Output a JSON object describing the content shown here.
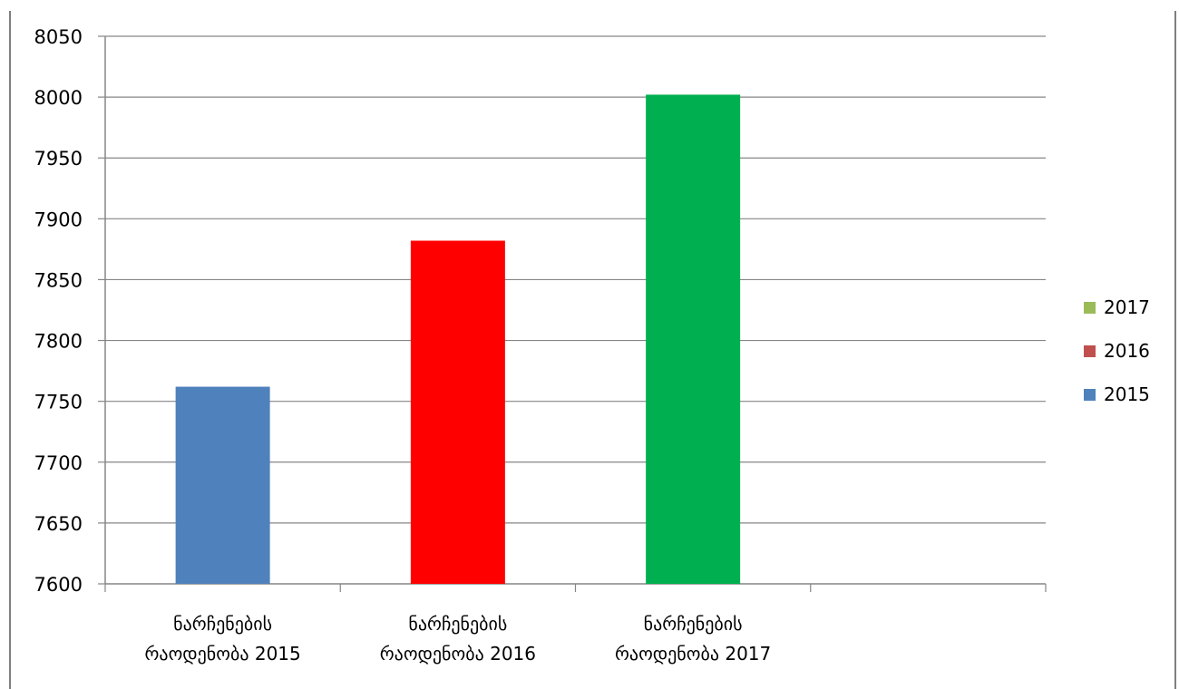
{
  "chart_data": {
    "type": "bar",
    "title": "",
    "xlabel": "",
    "ylabel": "",
    "ylim": [
      7600,
      8050
    ],
    "ytick_step": 50,
    "grid": true,
    "legend_position": "right",
    "categories": [
      [
        "ნარჩენების",
        "რაოდენობა 2015"
      ],
      [
        "ნარჩენების",
        "რაოდენობა 2016"
      ],
      [
        "ნარჩენების",
        "რაოდენობა 2017"
      ],
      [
        "",
        ""
      ]
    ],
    "series": [
      {
        "name": "2015",
        "values": [
          7762,
          null,
          null,
          null
        ],
        "color": "#4f81bd",
        "legend_color": "#4f81bd"
      },
      {
        "name": "2016",
        "values": [
          null,
          7882,
          null,
          null
        ],
        "color": "#ff0000",
        "legend_color": "#c0504d"
      },
      {
        "name": "2017",
        "values": [
          null,
          null,
          8002,
          null
        ],
        "color": "#00b050",
        "legend_color": "#9bbb59"
      }
    ]
  }
}
